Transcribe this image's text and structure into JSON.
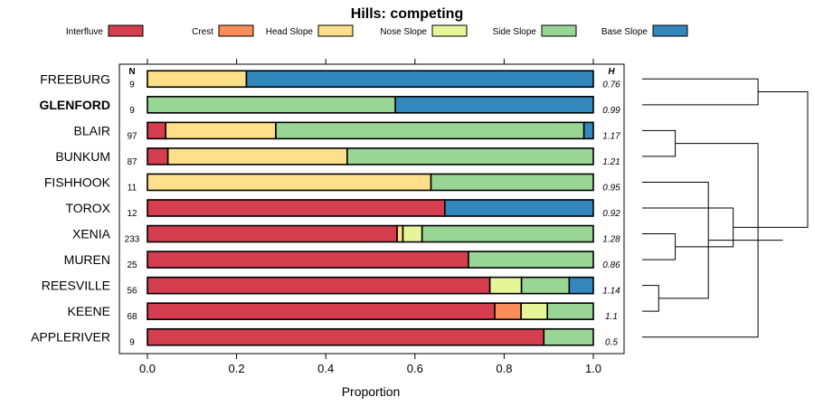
{
  "chart_data": {
    "type": "bar",
    "stacked": true,
    "orientation": "horizontal",
    "title": "Hills: competing",
    "xlabel": "Proportion",
    "ylabel": "",
    "xlim": [
      0,
      1
    ],
    "xticks": [
      "0.0",
      "0.2",
      "0.4",
      "0.6",
      "0.8",
      "1.0"
    ],
    "n_header": "N",
    "h_header": "H",
    "legend": [
      {
        "name": "Interfluve",
        "color": "#D53E4F"
      },
      {
        "name": "Crest",
        "color": "#FC8D59"
      },
      {
        "name": "Head Slope",
        "color": "#FEE08B"
      },
      {
        "name": "Nose Slope",
        "color": "#E6F598"
      },
      {
        "name": "Side Slope",
        "color": "#99D594"
      },
      {
        "name": "Base Slope",
        "color": "#3288BD"
      }
    ],
    "rows": [
      {
        "name": "FREEBURG",
        "bold": false,
        "n": "9",
        "h": "0.76",
        "values": [
          0,
          0,
          0.222,
          0,
          0,
          0.778
        ]
      },
      {
        "name": "GLENFORD",
        "bold": true,
        "n": "9",
        "h": "0.99",
        "values": [
          0,
          0,
          0,
          0,
          0.556,
          0.444
        ]
      },
      {
        "name": "BLAIR",
        "bold": false,
        "n": "97",
        "h": "1.17",
        "values": [
          0.041,
          0,
          0.247,
          0,
          0.691,
          0.021
        ]
      },
      {
        "name": "BUNKUM",
        "bold": false,
        "n": "87",
        "h": "1.21",
        "values": [
          0.046,
          0,
          0.402,
          0,
          0.552,
          0
        ]
      },
      {
        "name": "FISHHOOK",
        "bold": false,
        "n": "11",
        "h": "0.95",
        "values": [
          0,
          0,
          0.636,
          0,
          0.364,
          0
        ]
      },
      {
        "name": "TOROX",
        "bold": false,
        "n": "12",
        "h": "0.92",
        "values": [
          0.667,
          0,
          0,
          0,
          0,
          0.333
        ]
      },
      {
        "name": "XENIA",
        "bold": false,
        "n": "233",
        "h": "1.28",
        "values": [
          0.56,
          0,
          0.013,
          0.043,
          0.384,
          0
        ]
      },
      {
        "name": "MUREN",
        "bold": false,
        "n": "25",
        "h": "0.86",
        "values": [
          0.72,
          0,
          0,
          0,
          0.28,
          0
        ]
      },
      {
        "name": "REESVILLE",
        "bold": false,
        "n": "56",
        "h": "1.14",
        "values": [
          0.768,
          0,
          0,
          0.071,
          0.107,
          0.054
        ]
      },
      {
        "name": "KEENE",
        "bold": false,
        "n": "68",
        "h": "1.1",
        "values": [
          0.779,
          0.059,
          0,
          0.059,
          0.103,
          0
        ]
      },
      {
        "name": "APPLERIVER",
        "bold": false,
        "n": "9",
        "h": "0.5",
        "values": [
          0.889,
          0,
          0,
          0,
          0.111,
          0
        ]
      }
    ],
    "dendrogram_merges": [
      [
        2,
        3,
        0.2
      ],
      [
        8,
        9,
        0.1
      ],
      [
        6,
        7,
        0.2
      ],
      [
        10,
        11,
        0.7
      ],
      [
        4,
        12,
        0.4
      ],
      [
        5,
        13,
        0.55
      ],
      [
        0,
        1,
        0.7
      ],
      [
        14,
        15,
        0.85
      ],
      [
        16,
        17,
        1.0
      ]
    ],
    "dendrogram_max_height": 1.0
  }
}
